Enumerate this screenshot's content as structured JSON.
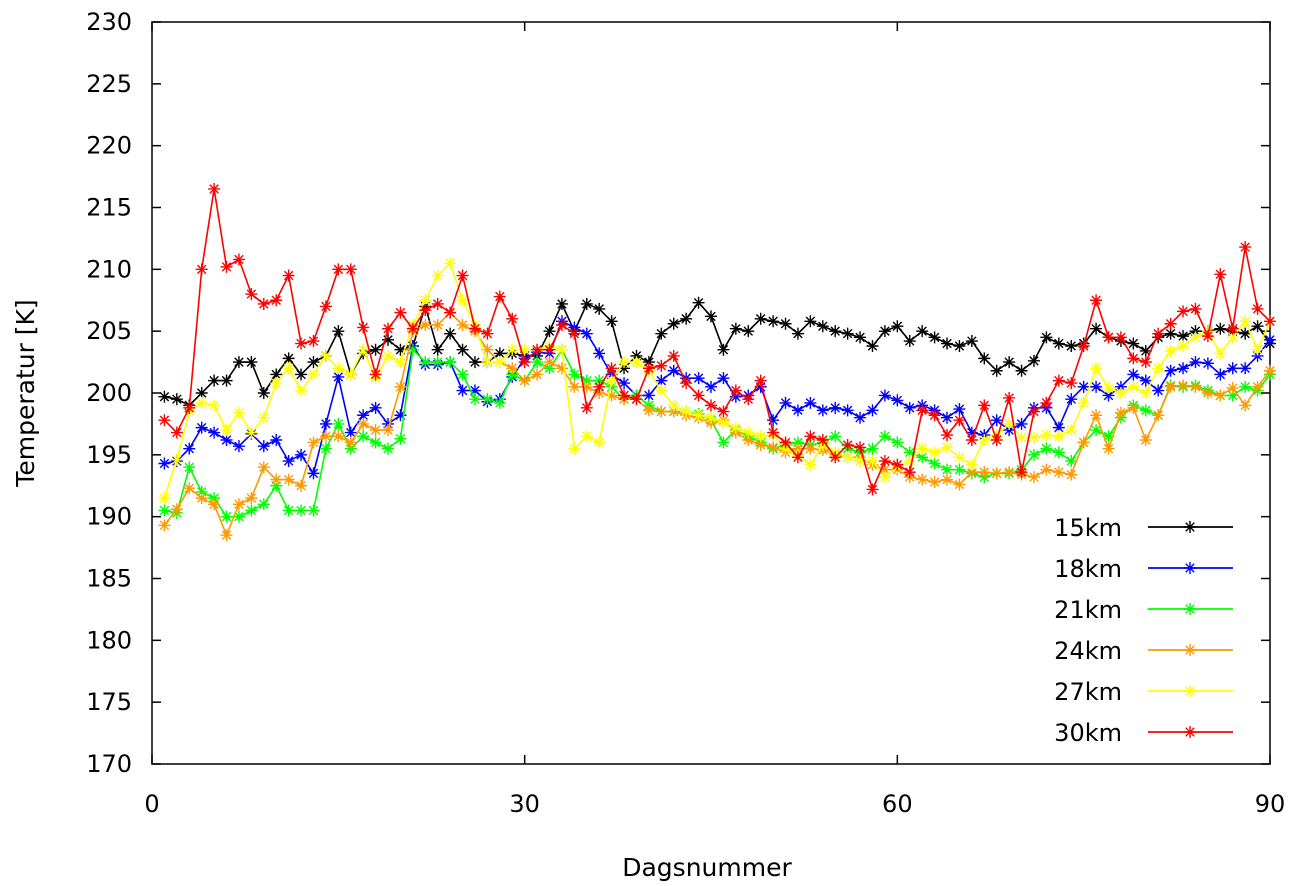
{
  "chart_data": {
    "type": "line",
    "title": "",
    "xlabel": "Dagsnummer",
    "ylabel": "Temperatur [K]",
    "xlim": [
      0,
      90
    ],
    "ylim": [
      170,
      230
    ],
    "xticks": [
      0,
      30,
      60,
      90
    ],
    "yticks": [
      170,
      175,
      180,
      185,
      190,
      195,
      200,
      205,
      210,
      215,
      220,
      225,
      230
    ],
    "grid": false,
    "legend_position": "bottom-right",
    "x": [
      1,
      2,
      3,
      4,
      5,
      6,
      7,
      8,
      9,
      10,
      11,
      12,
      13,
      14,
      15,
      16,
      17,
      18,
      19,
      20,
      21,
      22,
      23,
      24,
      25,
      26,
      27,
      28,
      29,
      30,
      31,
      32,
      33,
      34,
      35,
      36,
      37,
      38,
      39,
      40,
      41,
      42,
      43,
      44,
      45,
      46,
      47,
      48,
      49,
      50,
      51,
      52,
      53,
      54,
      55,
      56,
      57,
      58,
      59,
      60,
      61,
      62,
      63,
      64,
      65,
      66,
      67,
      68,
      69,
      70,
      71,
      72,
      73,
      74,
      75,
      76,
      77,
      78,
      79,
      80,
      81,
      82,
      83,
      84,
      85,
      86,
      87,
      88,
      89,
      90
    ],
    "series": [
      {
        "name": "15km",
        "color": "#000000",
        "values": [
          199.7,
          199.5,
          199,
          200,
          201,
          201,
          202.5,
          202.5,
          200,
          201.5,
          202.8,
          201.5,
          202.5,
          203,
          205,
          201.5,
          203.2,
          203.5,
          204.3,
          203.5,
          203.8,
          207,
          203.5,
          204.8,
          203.5,
          202.5,
          202.5,
          203.2,
          203.2,
          203,
          203,
          205,
          207.2,
          205,
          207.2,
          206.8,
          205.8,
          202,
          203,
          202.5,
          204.8,
          205.6,
          206,
          207.3,
          206.2,
          203.5,
          205.2,
          205,
          206,
          205.8,
          205.6,
          204.8,
          205.8,
          205.4,
          205,
          204.8,
          204.5,
          203.8,
          205,
          205.4,
          204.2,
          205,
          204.5,
          204,
          203.8,
          204.2,
          202.8,
          201.8,
          202.5,
          201.8,
          202.6,
          204.5,
          204,
          203.8,
          204,
          205.2,
          204.5,
          204.2,
          204,
          203.4,
          204.5,
          204.8,
          204.6,
          205,
          205,
          205.2,
          205,
          204.8,
          205.4,
          204
        ]
      },
      {
        "name": "18km",
        "color": "#0000ff",
        "values": [
          194.3,
          194.5,
          195.5,
          197.2,
          196.8,
          196.2,
          195.7,
          196.7,
          195.7,
          196.2,
          194.5,
          195,
          193.5,
          197.5,
          201.3,
          196.8,
          198.2,
          198.8,
          197.5,
          198.2,
          203.8,
          202.3,
          202.3,
          202.5,
          200.2,
          200.2,
          199.3,
          199.5,
          201.3,
          202.8,
          203.3,
          203.2,
          205.8,
          205.3,
          204.8,
          203.2,
          201.5,
          200.8,
          199.8,
          199.8,
          201,
          201.8,
          201.2,
          201.2,
          200.5,
          201.2,
          199.7,
          199.8,
          200.5,
          197.8,
          199.2,
          198.6,
          199.2,
          198.6,
          198.8,
          198.6,
          198,
          198.6,
          199.8,
          199.4,
          198.8,
          199,
          198.6,
          198,
          198.7,
          196.8,
          196.6,
          197.8,
          197,
          197.5,
          198.8,
          198.8,
          197.2,
          199.5,
          200.5,
          200.5,
          199.8,
          200.5,
          201.5,
          201,
          200.2,
          201.8,
          202,
          202.5,
          202.4,
          201.5,
          202,
          202,
          203,
          204.3
        ]
      },
      {
        "name": "21km",
        "color": "#00ff00",
        "values": [
          190.5,
          190.3,
          194,
          192,
          191.5,
          190,
          190,
          190.5,
          191,
          192.5,
          190.5,
          190.5,
          190.5,
          195.5,
          197.5,
          195.5,
          196.5,
          196,
          195.5,
          196.3,
          203.5,
          202.5,
          202.5,
          202.5,
          201.5,
          199.5,
          199.5,
          199.2,
          201.5,
          201,
          202.5,
          202,
          203.5,
          201.5,
          201,
          201,
          200.5,
          199.5,
          199.8,
          199,
          198.5,
          198.5,
          198.5,
          198.3,
          197.8,
          196,
          197,
          196.5,
          196,
          195.5,
          195.8,
          196,
          195.8,
          196,
          196.5,
          195.5,
          195.2,
          195.5,
          196.5,
          196,
          195.2,
          194.8,
          194.3,
          193.8,
          193.8,
          193.5,
          193.2,
          193.5,
          193.5,
          193.8,
          195,
          195.5,
          195.2,
          194.5,
          196,
          197,
          196.5,
          198,
          199,
          198.6,
          198.2,
          200.6,
          200.5,
          200.6,
          200.2,
          199.8,
          199.8,
          200.5,
          200.2,
          201.5
        ]
      },
      {
        "name": "24km",
        "color": "#ff9900",
        "values": [
          189.3,
          190.6,
          192.3,
          191.5,
          191,
          188.5,
          191,
          191.5,
          194,
          193,
          193,
          192.5,
          196,
          196.5,
          196.5,
          196,
          197.5,
          197,
          197,
          200.5,
          205,
          205.5,
          205.5,
          206.5,
          205.5,
          205,
          203.5,
          202.5,
          202,
          201,
          201.5,
          202.5,
          202,
          200.5,
          200.5,
          200,
          199.8,
          199.5,
          199.5,
          198.6,
          198.5,
          198.5,
          198.2,
          198,
          197.6,
          197.8,
          196.8,
          196.2,
          195.8,
          195.6,
          195.2,
          195.5,
          195.5,
          195.4,
          195,
          194.8,
          194.8,
          194.2,
          193.8,
          193.8,
          193.2,
          193,
          192.8,
          193,
          192.6,
          193.6,
          193.6,
          193.5,
          193.6,
          193.4,
          193.2,
          193.8,
          193.6,
          193.4,
          196,
          198.2,
          195.5,
          198.4,
          198.8,
          196.2,
          198.2,
          200.5,
          200.6,
          200.5,
          200,
          199.8,
          200.4,
          199,
          200.5,
          201.8
        ]
      },
      {
        "name": "27km",
        "color": "#ffff00",
        "values": [
          191.5,
          194.6,
          198.5,
          199.2,
          199,
          197,
          198.4,
          196.8,
          198,
          200.8,
          202,
          200.2,
          201.5,
          203,
          202,
          201.5,
          203.5,
          201.2,
          203,
          202.5,
          205.5,
          207.5,
          209.5,
          210.5,
          207.5,
          205.5,
          202.5,
          202.5,
          203.5,
          203.5,
          203.5,
          203.8,
          203.5,
          195.5,
          196.5,
          196,
          201,
          202.5,
          202.5,
          201.8,
          200.2,
          199,
          198.5,
          198.2,
          198,
          197.6,
          197.2,
          196.8,
          196.5,
          196.6,
          195.5,
          195,
          194.2,
          195.8,
          195.2,
          194.8,
          194.5,
          194.5,
          193.2,
          194,
          194.5,
          195.5,
          195.2,
          195.6,
          194.8,
          194.2,
          196.2,
          196.6,
          197.5,
          196.4,
          196.4,
          196.6,
          196.5,
          197,
          199.2,
          202,
          200.4,
          200,
          200.5,
          200,
          202,
          203.4,
          203.8,
          204.5,
          205,
          203.2,
          204.5,
          205.8,
          203.5,
          205.8
        ]
      },
      {
        "name": "30km",
        "color": "#ff0000",
        "values": [
          197.8,
          196.8,
          198.8,
          210,
          216.5,
          210.2,
          210.8,
          208,
          207.2,
          207.5,
          209.5,
          204,
          204.2,
          207,
          210,
          210,
          205.3,
          201.5,
          205.2,
          206.5,
          205.2,
          206.7,
          207.2,
          206.5,
          209.5,
          205.2,
          204.8,
          207.8,
          206,
          202.5,
          203.5,
          203.5,
          205.5,
          204.8,
          198.8,
          200.5,
          202,
          199.8,
          199.5,
          202,
          202.2,
          203,
          200.8,
          199.8,
          199,
          198.5,
          200.2,
          199.5,
          201,
          196.8,
          196,
          194.8,
          196.5,
          196.2,
          194.8,
          195.8,
          195.6,
          192.2,
          194.5,
          194.2,
          193.6,
          198.6,
          198.2,
          196.6,
          197.8,
          196.2,
          199,
          196.2,
          199.6,
          193.6,
          198.5,
          199.2,
          201,
          200.8,
          203.8,
          207.5,
          204.5,
          204.5,
          202.8,
          202.5,
          204.8,
          205.6,
          206.6,
          206.8,
          204.6,
          209.6,
          205.2,
          211.8,
          206.8,
          205.8
        ]
      }
    ]
  }
}
